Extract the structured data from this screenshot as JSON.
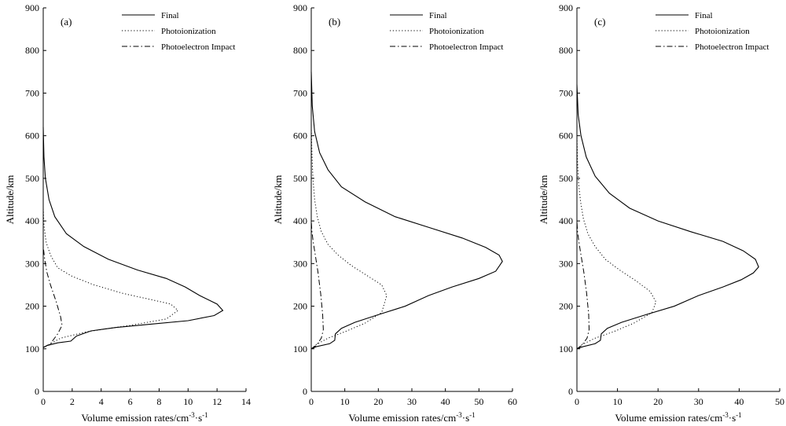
{
  "chart_data": [
    {
      "type": "line",
      "panel_label": "(a)",
      "xlabel": "Volume emission rates/cm",
      "xlabel_sup1": "-3",
      "xlabel_mid": "·s",
      "xlabel_sup2": "-1",
      "ylabel": "Altitude/km",
      "xlim": [
        0,
        14
      ],
      "ylim": [
        0,
        900
      ],
      "xticks": [
        0,
        2,
        4,
        6,
        8,
        10,
        12,
        14
      ],
      "yticks": [
        0,
        100,
        200,
        300,
        400,
        500,
        600,
        700,
        800,
        900
      ],
      "legend_position": "top-right",
      "series": [
        {
          "name": "Final",
          "style": "solid",
          "x": [
            0,
            0.3,
            1.0,
            1.9,
            2.3,
            3.3,
            5.0,
            7.5,
            10.0,
            11.8,
            12.4,
            12.0,
            10.8,
            9.8,
            8.5,
            6.5,
            4.5,
            2.8,
            1.6,
            0.8,
            0.4,
            0.15,
            0.05,
            0.0
          ],
          "y": [
            103,
            108,
            114,
            118,
            130,
            142,
            150,
            158,
            166,
            178,
            190,
            205,
            225,
            245,
            265,
            285,
            310,
            340,
            370,
            410,
            450,
            500,
            550,
            620
          ]
        },
        {
          "name": "Photoionization",
          "style": "dotted",
          "x": [
            0,
            0.4,
            1.2,
            3.0,
            6.0,
            8.5,
            9.3,
            8.8,
            7.5,
            5.5,
            3.5,
            2.0,
            1.0,
            0.5,
            0.2,
            0.05,
            0.0
          ],
          "y": [
            103,
            110,
            125,
            140,
            155,
            170,
            190,
            205,
            215,
            230,
            250,
            270,
            290,
            320,
            350,
            390,
            430
          ]
        },
        {
          "name": "Photoelectron Impact",
          "style": "dashdot",
          "x": [
            0,
            0.5,
            1.0,
            1.3,
            1.2,
            0.9,
            0.5,
            0.25,
            0.1,
            0.0
          ],
          "y": [
            103,
            112,
            135,
            155,
            175,
            210,
            250,
            280,
            310,
            340
          ]
        }
      ]
    },
    {
      "type": "line",
      "panel_label": "(b)",
      "xlabel": "Volume emission rates/cm",
      "xlabel_sup1": "-3",
      "xlabel_mid": "·s",
      "xlabel_sup2": "-1",
      "ylabel": "Altitude/km",
      "xlim": [
        0,
        60
      ],
      "ylim": [
        0,
        900
      ],
      "xticks": [
        0,
        10,
        20,
        30,
        40,
        50,
        60
      ],
      "yticks": [
        0,
        100,
        200,
        300,
        400,
        500,
        600,
        700,
        800,
        900
      ],
      "legend_position": "top-right",
      "series": [
        {
          "name": "Final",
          "style": "solid",
          "x": [
            0,
            1.5,
            5.5,
            7.0,
            7.2,
            9.0,
            13,
            20,
            28,
            35,
            42,
            50,
            55,
            57,
            56,
            52,
            45,
            35,
            25,
            16,
            9,
            5,
            2.5,
            1.0,
            0.3,
            0.0
          ],
          "y": [
            100,
            105,
            112,
            120,
            135,
            148,
            162,
            180,
            200,
            225,
            245,
            265,
            282,
            305,
            320,
            338,
            360,
            385,
            410,
            445,
            480,
            520,
            560,
            610,
            670,
            750
          ]
        },
        {
          "name": "Photoionization",
          "style": "dotted",
          "x": [
            0,
            1.5,
            5,
            10,
            16,
            21,
            22.5,
            21,
            17,
            12,
            8,
            5,
            3,
            1.8,
            1.0,
            0.5,
            0.2,
            0.0
          ],
          "y": [
            100,
            110,
            125,
            140,
            160,
            185,
            225,
            250,
            270,
            295,
            320,
            345,
            375,
            410,
            450,
            500,
            560,
            620
          ]
        },
        {
          "name": "Photoelectron Impact",
          "style": "dashdot",
          "x": [
            0,
            1.5,
            3.0,
            3.6,
            3.4,
            2.8,
            2.0,
            1.2,
            0.6,
            0.2,
            0.0
          ],
          "y": [
            100,
            108,
            125,
            145,
            180,
            230,
            280,
            320,
            350,
            375,
            400
          ]
        }
      ]
    },
    {
      "type": "line",
      "panel_label": "(c)",
      "xlabel": "Volume emission rates/cm",
      "xlabel_sup1": "-3",
      "xlabel_mid": "·s",
      "xlabel_sup2": "-1",
      "ylabel": "Altitude/km",
      "xlim": [
        0,
        50
      ],
      "ylim": [
        0,
        900
      ],
      "xticks": [
        0,
        10,
        20,
        30,
        40,
        50
      ],
      "yticks": [
        0,
        100,
        200,
        300,
        400,
        500,
        600,
        700,
        800,
        900
      ],
      "legend_position": "top-right",
      "series": [
        {
          "name": "Final",
          "style": "solid",
          "x": [
            0,
            1.5,
            4.5,
            5.8,
            6.0,
            7.5,
            11,
            17,
            24,
            30,
            36,
            40.5,
            43.5,
            44.8,
            44,
            41,
            36,
            28,
            20,
            13,
            8,
            4.5,
            2.3,
            1.0,
            0.3,
            0.0
          ],
          "y": [
            100,
            105,
            112,
            120,
            135,
            148,
            162,
            180,
            200,
            225,
            245,
            262,
            278,
            292,
            310,
            330,
            352,
            375,
            400,
            430,
            465,
            505,
            550,
            600,
            650,
            720
          ]
        },
        {
          "name": "Photoionization",
          "style": "dotted",
          "x": [
            0,
            1.3,
            4.5,
            9,
            14,
            18.5,
            19.5,
            18,
            14.5,
            10.5,
            7,
            4.5,
            2.7,
            1.6,
            0.9,
            0.4,
            0.15,
            0.0
          ],
          "y": [
            100,
            110,
            125,
            140,
            160,
            185,
            210,
            235,
            260,
            285,
            310,
            340,
            370,
            405,
            445,
            490,
            540,
            600
          ]
        },
        {
          "name": "Photoelectron Impact",
          "style": "dashdot",
          "x": [
            0,
            1.2,
            2.5,
            3.0,
            2.9,
            2.4,
            1.7,
            1.0,
            0.5,
            0.15,
            0.0
          ],
          "y": [
            100,
            108,
            125,
            145,
            180,
            230,
            280,
            320,
            350,
            375,
            400
          ]
        }
      ]
    }
  ]
}
